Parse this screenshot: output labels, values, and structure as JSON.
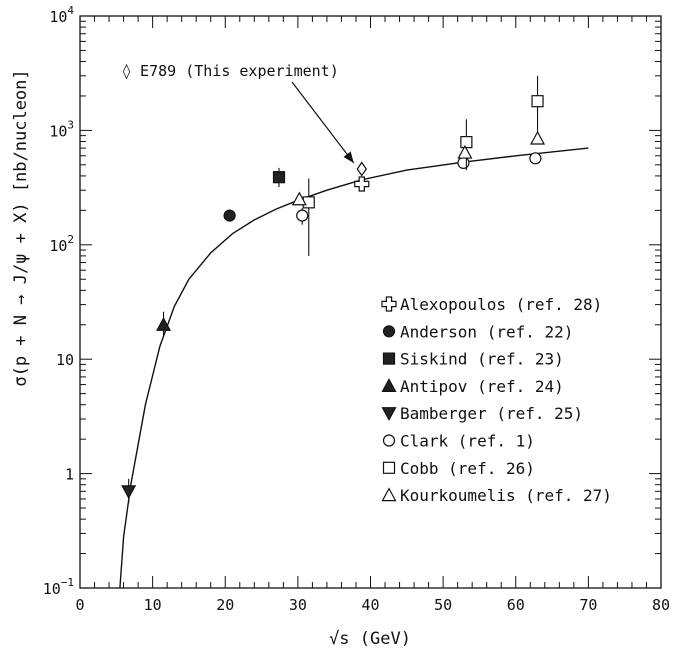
{
  "chart_data": {
    "type": "scatter",
    "title": "",
    "xlabel": "√s (GeV)",
    "ylabel": "σ(p + N → J/ψ + X) [nb/nucleon]",
    "x_scale": "linear",
    "y_scale": "log",
    "xlim": [
      0,
      80
    ],
    "ylim": [
      0.1,
      10000
    ],
    "x_ticks": [
      "0",
      "10",
      "20",
      "30",
      "40",
      "50",
      "60",
      "70",
      "80"
    ],
    "y_ticks": [
      {
        "value": 0.1,
        "mantissa": "10",
        "exp": "−1"
      },
      {
        "value": 1,
        "mantissa": "1",
        "exp": ""
      },
      {
        "value": 10,
        "mantissa": "10",
        "exp": ""
      },
      {
        "value": 100,
        "mantissa": "10",
        "exp": "2"
      },
      {
        "value": 1000,
        "mantissa": "10",
        "exp": "3"
      },
      {
        "value": 10000,
        "mantissa": "10",
        "exp": "4"
      }
    ],
    "grid": false,
    "legend_position": "bottom-right",
    "annotation": {
      "label": "◊ E789 (This experiment)",
      "x": 38.8,
      "y": 460
    },
    "fit_curve": [
      [
        5.5,
        0.1
      ],
      [
        6,
        0.28
      ],
      [
        7,
        0.8
      ],
      [
        9,
        4
      ],
      [
        11,
        13
      ],
      [
        13,
        29
      ],
      [
        15,
        50
      ],
      [
        18,
        85
      ],
      [
        21,
        125
      ],
      [
        24,
        165
      ],
      [
        27,
        205
      ],
      [
        30,
        245
      ],
      [
        34,
        300
      ],
      [
        38.8,
        370
      ],
      [
        45,
        450
      ],
      [
        53,
        530
      ],
      [
        60,
        600
      ],
      [
        70,
        700
      ]
    ],
    "series": [
      {
        "name": "Alexopoulos (ref. 28)",
        "marker": "cross-open",
        "points": [
          {
            "x": 38.8,
            "y": 340,
            "lo": 300,
            "hi": 380
          }
        ]
      },
      {
        "name": "Anderson (ref. 22)",
        "marker": "circle-filled",
        "points": [
          {
            "x": 20.6,
            "y": 180
          }
        ]
      },
      {
        "name": "Siskind (ref. 23)",
        "marker": "square-filled",
        "points": [
          {
            "x": 27.4,
            "y": 390,
            "lo": 320,
            "hi": 470
          }
        ]
      },
      {
        "name": "Antipov (ref. 24)",
        "marker": "triangle-up-filled",
        "points": [
          {
            "x": 11.5,
            "y": 20,
            "lo": 16,
            "hi": 26
          }
        ]
      },
      {
        "name": "Bamberger (ref. 25)",
        "marker": "triangle-down-filled",
        "points": [
          {
            "x": 6.7,
            "y": 0.7,
            "lo": 0.55,
            "hi": 0.9
          }
        ]
      },
      {
        "name": "Clark (ref. 1)",
        "marker": "circle-open",
        "points": [
          {
            "x": 30.6,
            "y": 180,
            "lo": 150,
            "hi": 210
          },
          {
            "x": 52.8,
            "y": 520,
            "lo": 460,
            "hi": 590
          },
          {
            "x": 62.7,
            "y": 570
          }
        ]
      },
      {
        "name": "Cobb (ref. 26)",
        "marker": "square-open",
        "points": [
          {
            "x": 31.5,
            "y": 235,
            "lo": 80,
            "hi": 380
          },
          {
            "x": 53.2,
            "y": 790,
            "lo": 450,
            "hi": 1250
          },
          {
            "x": 63.0,
            "y": 1800,
            "lo": 900,
            "hi": 3000
          }
        ]
      },
      {
        "name": "Kourkoumelis (ref. 27)",
        "marker": "triangle-up-open",
        "points": [
          {
            "x": 30.2,
            "y": 250
          },
          {
            "x": 53.0,
            "y": 640
          },
          {
            "x": 63.0,
            "y": 850
          }
        ]
      },
      {
        "marker": "diamond-open",
        "points": [
          {
            "x": 38.8,
            "y": 460
          }
        ]
      }
    ]
  }
}
